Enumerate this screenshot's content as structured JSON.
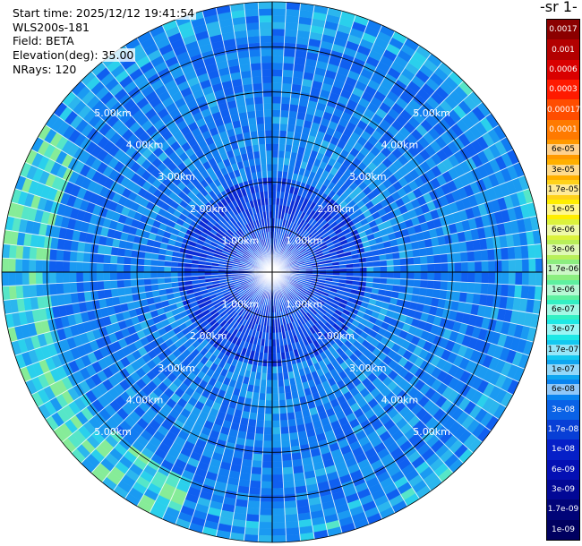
{
  "header": {
    "start_time": "Start time: 2025/12/12 19:41:54",
    "instrument": "WLS200s-181",
    "field": "Field: BETA",
    "elevation": "Elevation(deg): 35.00",
    "nrays": "NRays: 120"
  },
  "colorbar": {
    "title": "-1 sr-",
    "labels": [
      "0.0017",
      "0.001",
      "0.0006",
      "0.0003",
      "0.00017",
      "0.0001",
      "6e-05",
      "3e-05",
      "1.7e-05",
      "1e-05",
      "6e-06",
      "3e-06",
      "1.7e-06",
      "1e-06",
      "6e-07",
      "3e-07",
      "1.7e-07",
      "1e-07",
      "6e-08",
      "3e-08",
      "1.7e-08",
      "1e-08",
      "6e-09",
      "3e-09",
      "1.7e-09",
      "1e-09"
    ],
    "colors": [
      "#8b0000",
      "#b30000",
      "#d90000",
      "#ff1a00",
      "#ff4d00",
      "#ff7a00",
      "#ff9a00",
      "#ffb000",
      "#ffd21a",
      "#ffee00",
      "#dcf23c",
      "#b8ef5a",
      "#8cee80",
      "#5ef0a0",
      "#33f0c4",
      "#1ee8e6",
      "#14c8f0",
      "#0fa6f0",
      "#0a84f0",
      "#0a62e6",
      "#083fd6",
      "#0620c8",
      "#0410b4",
      "#020896",
      "#010478",
      "#000060"
    ]
  },
  "range_labels": [
    "1.00km",
    "2.00km",
    "3.00km",
    "4.00km",
    "5.00km"
  ],
  "chart_data": {
    "type": "heatmap",
    "projection": "polar-ppi",
    "field": "BETA",
    "elevation_deg": 35.0,
    "n_rays": 120,
    "range_rings_km": [
      1,
      2,
      3,
      4,
      5
    ],
    "max_range_km": 6.0,
    "color_scale": "log",
    "value_range": [
      1e-09,
      0.0017
    ],
    "dominant_value_range": [
      1e-08,
      1e-07
    ],
    "notes_visible": "near-uniform weak backscatter; slightly higher values (~1e-07 to 3e-07) near outer edge on west/south-west side"
  }
}
